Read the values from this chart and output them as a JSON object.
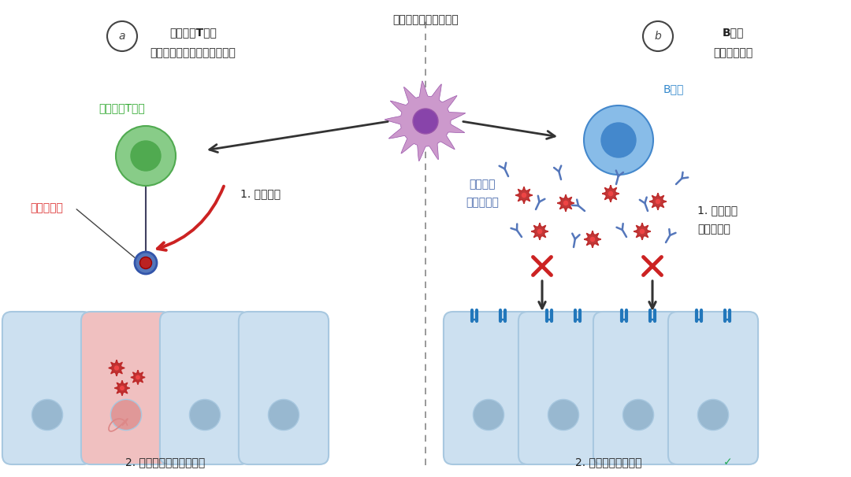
{
  "title": "抗原呈递细胞招募了：",
  "label_a": "a",
  "label_b": "b",
  "title_a_line1": "细胞毒性T细胞",
  "title_a_line2": "发现并清除被病毒感染的细胞",
  "title_b_line1": "B细胞",
  "title_b_line2": "释放中和抗体",
  "label_t_cell": "细胞毒性T细胞",
  "label_viral_antigen": "病毒的抗原",
  "label_immune_attack": "1. 免疫攻击",
  "label_kill_cell": "2. 杀灭被病毒感染的细胞",
  "label_b_cell": "B细胞",
  "label_antibody_line1": "中和抗体",
  "label_antibody_line2": "与病毒结合",
  "label_block_line1": "1. 阻止病毒",
  "label_block_line2": "与受体结合",
  "label_no_infect": "2. 病毒无法感染细胞",
  "bg_color": "#ffffff",
  "cell_body_color": "#cce0f0",
  "cell_outline_color": "#a8c8e0",
  "cell_nucleus_color": "#98b8d0",
  "infected_cell_color": "#f0c0c0",
  "infected_nucleus_color": "#e09898",
  "t_cell_color": "#88cc88",
  "t_cell_dark": "#50aa50",
  "b_cell_color": "#88bce8",
  "b_cell_dark": "#4488cc",
  "apc_body_color": "#cc99cc",
  "apc_dark": "#9955aa",
  "apc_nucleus_color": "#8844aa",
  "receptor_color": "#2277bb",
  "virus_color": "#bb2222",
  "antibody_color": "#5577bb",
  "arrow_color": "#333333",
  "red_arrow_color": "#cc2222",
  "divider_color": "#888888",
  "antigen_label_color": "#dd3333",
  "t_cell_label_color": "#33aa33",
  "b_cell_label_color": "#3388cc",
  "antibody_label_color": "#4466aa",
  "checkmark_color": "#22aa55"
}
